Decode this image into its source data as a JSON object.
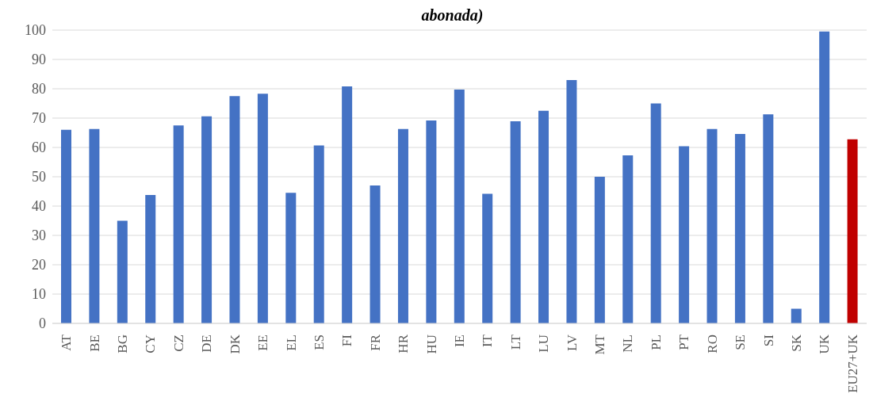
{
  "chart_data": {
    "type": "bar",
    "title": "abonada)",
    "categories": [
      "AT",
      "BE",
      "BG",
      "CY",
      "CZ",
      "DE",
      "DK",
      "EE",
      "EL",
      "ES",
      "FI",
      "FR",
      "HR",
      "HU",
      "IE",
      "IT",
      "LT",
      "LU",
      "LV",
      "MT",
      "NL",
      "PL",
      "PT",
      "RO",
      "SE",
      "SI",
      "SK",
      "UK",
      "EU27+UK"
    ],
    "values": [
      66,
      66.3,
      35,
      43.8,
      67.5,
      70.6,
      77.5,
      78.3,
      44.5,
      60.7,
      80.8,
      47,
      66.3,
      69.2,
      79.7,
      44.2,
      68.9,
      72.5,
      83,
      50,
      57.3,
      75,
      60.4,
      66.3,
      64.6,
      71.3,
      5,
      99.5,
      62.8
    ],
    "colors": [
      "#4472c4",
      "#4472c4",
      "#4472c4",
      "#4472c4",
      "#4472c4",
      "#4472c4",
      "#4472c4",
      "#4472c4",
      "#4472c4",
      "#4472c4",
      "#4472c4",
      "#4472c4",
      "#4472c4",
      "#4472c4",
      "#4472c4",
      "#4472c4",
      "#4472c4",
      "#4472c4",
      "#4472c4",
      "#4472c4",
      "#4472c4",
      "#4472c4",
      "#4472c4",
      "#4472c4",
      "#4472c4",
      "#4472c4",
      "#4472c4",
      "#4472c4",
      "#c00000"
    ],
    "ylim": [
      0,
      100
    ],
    "yticks": [
      0,
      10,
      20,
      30,
      40,
      50,
      60,
      70,
      80,
      90,
      100
    ],
    "grid": "y"
  }
}
